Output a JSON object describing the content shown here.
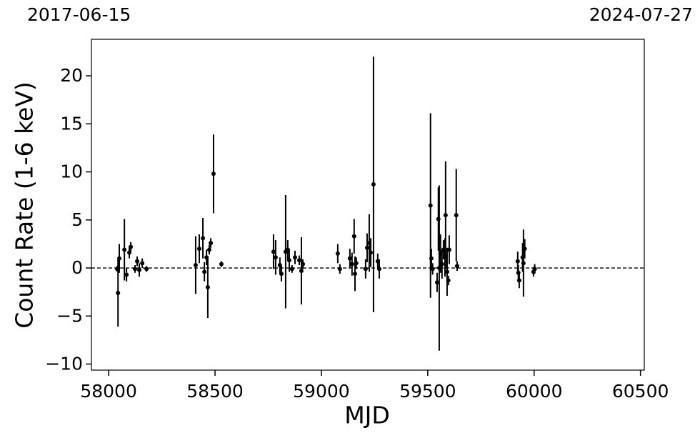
{
  "chart_data": {
    "type": "errorbar-scatter",
    "xlabel": "MJD",
    "ylabel": "Count Rate (1-6 keV)",
    "annotations": [
      {
        "text": "2017-06-15",
        "corner": "left"
      },
      {
        "text": "2024-07-27",
        "corner": "right"
      }
    ],
    "xlim": [
      57919,
      60518
    ],
    "ylim": [
      -10.63,
      23.8
    ],
    "xticks": [
      58000,
      58500,
      59000,
      59500,
      60000,
      60500
    ],
    "yticks": [
      {
        "value": -10,
        "label": "−10"
      },
      {
        "value": -5,
        "label": "−5"
      },
      0,
      5,
      10,
      15,
      20
    ],
    "hline": 0,
    "series": [
      {
        "color": "#000000",
        "x": [
          58040,
          58044,
          58050,
          58074,
          58084,
          58097,
          58104,
          58124,
          58134,
          58144,
          58158,
          58178,
          58409,
          58426,
          58443,
          58450,
          58460,
          58466,
          58473,
          58480,
          58493,
          58530,
          58775,
          58785,
          58805,
          58812,
          58832,
          58842,
          58849,
          58862,
          58876,
          58896,
          58906,
          58913,
          59077,
          59087,
          59134,
          59144,
          59154,
          59158,
          59164,
          59208,
          59215,
          59225,
          59232,
          59245,
          59265,
          59272,
          59513,
          59517,
          59523,
          59544,
          59550,
          59554,
          59560,
          59567,
          59574,
          59581,
          59584,
          59591,
          59597,
          59601,
          59634,
          59638,
          59923,
          59926,
          59930,
          59946,
          59950,
          59956,
          59997,
          60003
        ],
        "values": [
          -0.1,
          -2.6,
          1.0,
          1.9,
          -0.7,
          1.6,
          2.2,
          -0.1,
          0.7,
          -0.2,
          0.5,
          -0.1,
          0.3,
          2.0,
          3.1,
          -0.4,
          1.1,
          -2.0,
          1.9,
          2.6,
          9.8,
          0.4,
          1.7,
          1.1,
          0.3,
          -0.6,
          1.7,
          1.9,
          0.8,
          -0.1,
          1.1,
          0.8,
          -0.3,
          0.4,
          1.5,
          -0.1,
          1.0,
          0.4,
          3.3,
          -0.6,
          0.5,
          -0.1,
          2.1,
          2.6,
          1.6,
          8.7,
          0.7,
          -0.1,
          6.5,
          1.0,
          -0.1,
          -1.5,
          5.1,
          0.0,
          1.5,
          0.4,
          1.9,
          1.1,
          5.5,
          -0.4,
          -1.3,
          1.9,
          5.5,
          0.2,
          0.7,
          -0.5,
          -1.3,
          1.1,
          0.5,
          2.0,
          -0.4,
          -0.1
        ],
        "errors": [
          0.3,
          3.5,
          1.5,
          3.2,
          0.7,
          0.6,
          0.5,
          0.4,
          0.5,
          0.7,
          0.5,
          0.3,
          3.0,
          1.5,
          2.1,
          1.0,
          0.8,
          3.2,
          0.5,
          0.5,
          4.1,
          0.3,
          1.8,
          1.8,
          0.8,
          0.8,
          5.9,
          1.0,
          1.2,
          0.4,
          0.7,
          0.5,
          3.5,
          0.5,
          1.0,
          0.5,
          1.0,
          1.2,
          1.8,
          1.8,
          0.6,
          1.0,
          1.5,
          3.0,
          1.5,
          13.3,
          0.8,
          1.0,
          9.6,
          1.0,
          0.6,
          1.0,
          3.3,
          8.6,
          2.0,
          1.5,
          1.0,
          2.0,
          5.6,
          2.5,
          0.5,
          1.5,
          4.8,
          0.5,
          1.0,
          0.8,
          0.8,
          1.5,
          3.5,
          1.0,
          0.5,
          0.5
        ]
      }
    ]
  }
}
